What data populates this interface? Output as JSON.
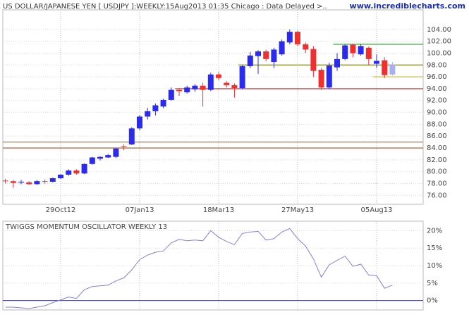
{
  "chart_data": [
    {
      "type": "candlestick",
      "title": "US DOLLAR/JAPANESE YEN [ USDJPY ]:WEEKLY:15Aug2013 01:35 Chicago : Data Delayed >..",
      "source": "www.incrediblecharts.com",
      "categories": [
        null,
        null,
        null,
        null,
        null,
        null,
        null,
        "29Oct12",
        null,
        null,
        null,
        null,
        null,
        null,
        null,
        null,
        null,
        "07Jan13",
        null,
        null,
        null,
        null,
        null,
        null,
        null,
        null,
        null,
        "18Mar13",
        null,
        null,
        null,
        null,
        null,
        null,
        null,
        null,
        null,
        "27May13",
        null,
        null,
        null,
        null,
        null,
        null,
        null,
        null,
        null,
        "05Aug13",
        null,
        null
      ],
      "open": [
        78.5,
        78.4,
        78.2,
        78.2,
        77.9,
        78.4,
        78.3,
        78.9,
        79.5,
        80.2,
        79.7,
        81.3,
        82.2,
        82.4,
        82.5,
        84.3,
        84.6,
        87.3,
        89.3,
        90.2,
        91.0,
        92.1,
        93.8,
        93.4,
        93.9,
        94.5,
        93.8,
        96.4,
        95.0,
        94.6,
        94.1,
        97.8,
        99.5,
        100.3,
        98.5,
        99.8,
        101.8,
        103.6,
        101.5,
        100.7,
        97.2,
        94.2,
        97.6,
        99.0,
        101.4,
        99.8,
        100.9,
        98.2,
        98.8,
        96.4
      ],
      "high": [
        78.8,
        78.6,
        78.6,
        78.4,
        78.6,
        78.7,
        79.0,
        79.6,
        80.4,
        80.4,
        81.4,
        82.5,
        82.6,
        83.0,
        84.0,
        84.6,
        87.5,
        89.6,
        90.8,
        91.5,
        92.3,
        94.2,
        94.1,
        94.5,
        94.8,
        95.0,
        96.7,
        96.8,
        95.3,
        94.9,
        98.0,
        100.2,
        100.5,
        100.6,
        100.9,
        102.3,
        104.0,
        103.8,
        101.8,
        101.2,
        97.5,
        98.4,
        100.0,
        101.5,
        101.6,
        101.5,
        101.1,
        99.8,
        99.3,
        98.5
      ],
      "low": [
        78.0,
        77.3,
        77.9,
        77.8,
        77.8,
        78.0,
        78.2,
        78.8,
        79.3,
        79.5,
        79.6,
        81.2,
        81.9,
        82.3,
        82.3,
        83.6,
        84.5,
        87.0,
        88.8,
        89.5,
        90.7,
        92.0,
        92.8,
        93.2,
        93.5,
        91.0,
        93.6,
        95.4,
        94.2,
        92.5,
        93.9,
        97.5,
        96.5,
        98.6,
        97.5,
        99.6,
        101.5,
        101.2,
        100.0,
        96.0,
        93.8,
        93.9,
        97.0,
        98.8,
        99.3,
        99.6,
        98.0,
        97.5,
        95.8,
        96.2
      ],
      "close": [
        78.4,
        78.1,
        78.3,
        77.9,
        78.4,
        78.3,
        78.9,
        79.5,
        80.2,
        79.7,
        81.3,
        82.4,
        82.5,
        82.8,
        83.9,
        84.2,
        87.3,
        89.3,
        90.2,
        91.2,
        92.1,
        93.8,
        93.6,
        94.2,
        94.5,
        93.8,
        96.4,
        95.8,
        94.6,
        94.1,
        97.8,
        99.6,
        100.3,
        99.0,
        100.6,
        102.0,
        103.6,
        101.5,
        100.6,
        97.0,
        94.2,
        97.9,
        99.0,
        101.3,
        100.0,
        101.2,
        99.0,
        98.7,
        96.3,
        98.1
      ],
      "up_color": "#2a2af0",
      "down_color": "#f03030",
      "last_color": "#a9b0ee",
      "lines": [
        {
          "value": 101.5,
          "start": 42,
          "color": "#2e8b2e"
        },
        {
          "value": 98,
          "start": 30,
          "color": "#8a8a20"
        },
        {
          "value": 96,
          "start": 47,
          "color": "#e0b020"
        },
        {
          "value": 94,
          "start": 22,
          "color": "#d02020"
        },
        {
          "value": 85,
          "start": 0,
          "color": "#d07020"
        },
        {
          "value": 84,
          "start": 0,
          "color": "#a05020"
        }
      ],
      "ylim": [
        74.5,
        107.3
      ],
      "yticks": [
        {
          "value": 76,
          "label": "76.00"
        },
        {
          "value": 78,
          "label": "78.00"
        },
        {
          "value": 80,
          "label": "80.00"
        },
        {
          "value": 82,
          "label": "82.00"
        },
        {
          "value": 84,
          "label": "84.00"
        },
        {
          "value": 86,
          "label": "86.00"
        },
        {
          "value": 88,
          "label": "88.00"
        },
        {
          "value": 90,
          "label": "90.00"
        },
        {
          "value": 92,
          "label": "92.00"
        },
        {
          "value": 94,
          "label": "94.00"
        },
        {
          "value": 96,
          "label": "96.00"
        },
        {
          "value": 98,
          "label": "98.00"
        },
        {
          "value": 100,
          "label": "100.00"
        },
        {
          "value": 102,
          "label": "102.00"
        },
        {
          "value": 104,
          "label": "104.00"
        }
      ],
      "grid": true
    },
    {
      "type": "line",
      "title": "TWIGGS MOMENTUM OSCILLATOR WEEKLY 13",
      "series": [
        {
          "name": "TWIGGS MOMENTUM OSCILLATOR WEEKLY 13",
          "color": "#8080e0",
          "values": [
            -1.9,
            -1.9,
            -2.1,
            -2.3,
            -1.9,
            -1.5,
            -0.6,
            0.2,
            1.0,
            0.6,
            3.1,
            4.0,
            4.2,
            4.4,
            5.6,
            6.5,
            8.8,
            11.7,
            13.0,
            13.8,
            14.2,
            16.5,
            17.5,
            17.1,
            17.3,
            17.1,
            20.0,
            18.1,
            16.9,
            16.0,
            19.2,
            19.6,
            19.8,
            17.3,
            17.7,
            19.6,
            20.6,
            17.7,
            15.6,
            11.9,
            6.7,
            10.2,
            11.5,
            12.7,
            9.8,
            10.4,
            7.3,
            7.1,
            3.5,
            4.4
          ]
        }
      ],
      "zero_color": "#3a3aa0",
      "ylim": [
        -2.7,
        22.7
      ],
      "yticks": [
        {
          "value": 0,
          "label": "0%"
        },
        {
          "value": 5,
          "label": "5%"
        },
        {
          "value": 10,
          "label": "10%"
        },
        {
          "value": 15,
          "label": "15%"
        },
        {
          "value": 20,
          "label": "20%"
        }
      ]
    }
  ]
}
